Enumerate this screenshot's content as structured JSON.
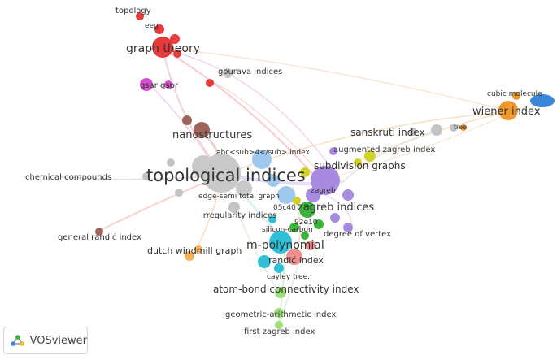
{
  "app": {
    "name": "VOSviewer"
  },
  "colors": {
    "red": "#e63b3b",
    "pink": "#d84fd0",
    "brown": "#a0655a",
    "gray": "#c4c4c4",
    "lightblue": "#9fc8ee",
    "purple": "#a88ae0",
    "yellow": "#cfd22a",
    "green": "#3ab53a",
    "cyan": "#2fc0d8",
    "salmon": "#ef8f8f",
    "orange": "#f0982e",
    "blue": "#3a86d8",
    "lime": "#9fdc7a",
    "lightorange": "#f5b05a"
  },
  "terms": [
    {
      "id": "topology",
      "label": "topology",
      "cluster": "red"
    },
    {
      "id": "eeg",
      "label": "eeg",
      "cluster": "red"
    },
    {
      "id": "graph-theory",
      "label": "graph theory",
      "cluster": "red"
    },
    {
      "id": "qsar-qspr",
      "label": "qsar qspr",
      "cluster": "pink"
    },
    {
      "id": "gourava-indices",
      "label": "gourava indices",
      "cluster": "gray"
    },
    {
      "id": "nanostructures",
      "label": "nanostructures",
      "cluster": "brown"
    },
    {
      "id": "abc4-index",
      "label": "abc<sub>4</sub> index",
      "cluster": "gray"
    },
    {
      "id": "chemical-compounds",
      "label": "chemical compounds",
      "cluster": "gray"
    },
    {
      "id": "topological-indices",
      "label": "topological indices",
      "cluster": "gray"
    },
    {
      "id": "edge-semi-total-graph",
      "label": "edge-semi total graph",
      "cluster": "gray"
    },
    {
      "id": "irregularity-indices",
      "label": "irregularity indices",
      "cluster": "gray"
    },
    {
      "id": "general-randic-index",
      "label": "general randić index",
      "cluster": "brown"
    },
    {
      "id": "dutch-windmill-graph",
      "label": "dutch windmill graph",
      "cluster": "lightorange"
    },
    {
      "id": "m-polynomial",
      "label": "m-polynomial",
      "cluster": "cyan"
    },
    {
      "id": "randic-index",
      "label": "randić index",
      "cluster": "salmon"
    },
    {
      "id": "cayley-tree",
      "label": "cayley tree.",
      "cluster": "cyan"
    },
    {
      "id": "atom-bond-connectivity-index",
      "label": "atom-bond connectivity index",
      "cluster": "lime"
    },
    {
      "id": "geometric-arithmetic-index",
      "label": "geometric-arithmetic index",
      "cluster": "lime"
    },
    {
      "id": "first-zagreb-index",
      "label": "first zagreb index",
      "cluster": "lime"
    },
    {
      "id": "zagreb-indices",
      "label": "zagreb indices",
      "cluster": "green"
    },
    {
      "id": "92e10",
      "label": "92e10",
      "cluster": "green"
    },
    {
      "id": "05c40",
      "label": "05c40",
      "cluster": "yellow"
    },
    {
      "id": "silicon-carbon",
      "label": "silicon-carbon",
      "cluster": "green"
    },
    {
      "id": "zagreb",
      "label": "zagreb",
      "cluster": "purple"
    },
    {
      "id": "degree-of-vertex",
      "label": "degree of vertex",
      "cluster": "purple"
    },
    {
      "id": "subdivision-graphs",
      "label": "subdivision graphs",
      "cluster": "purple"
    },
    {
      "id": "augmented-zagreb-index",
      "label": "augmented zagreb index",
      "cluster": "yellow"
    },
    {
      "id": "sanskruti-index",
      "label": "sanskruti index",
      "cluster": "gray"
    },
    {
      "id": "tree",
      "label": "tree",
      "cluster": "orange"
    },
    {
      "id": "wiener-index",
      "label": "wiener index",
      "cluster": "orange"
    },
    {
      "id": "cubic-molecule",
      "label": "cubic molecule",
      "cluster": "blue"
    }
  ]
}
